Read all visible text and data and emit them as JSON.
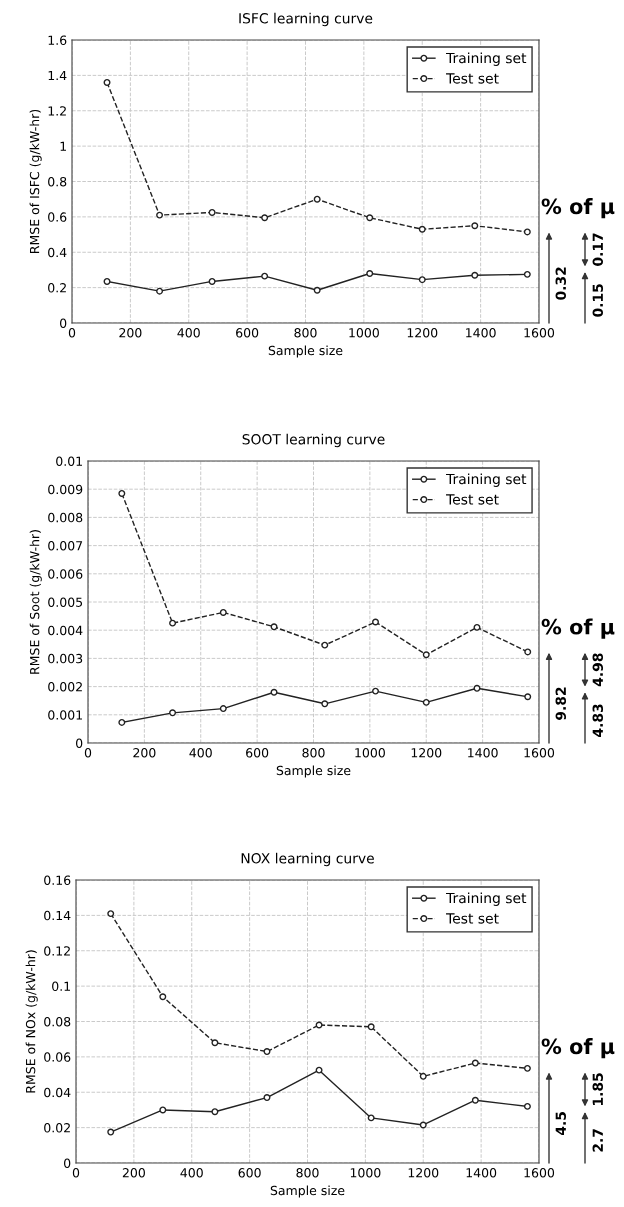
{
  "chart_data": [
    {
      "type": "line",
      "title": "ISFC learning curve",
      "xlabel": "Sample size",
      "ylabel": "RMSE of ISFC (g/kW-hr)",
      "x": [
        120,
        300,
        480,
        660,
        840,
        1020,
        1200,
        1380,
        1560
      ],
      "series": [
        {
          "name": "Training set",
          "color": "#222222",
          "line_style": "solid",
          "values": [
            0.235,
            0.18,
            0.235,
            0.265,
            0.185,
            0.28,
            0.245,
            0.27,
            0.275
          ]
        },
        {
          "name": "Test set",
          "color": "#222222",
          "line_style": "dashed",
          "values": [
            1.36,
            0.61,
            0.625,
            0.595,
            0.7,
            0.595,
            0.53,
            0.55,
            0.515
          ]
        }
      ],
      "xlim": [
        0,
        1600
      ],
      "xticks": [
        0,
        200,
        400,
        600,
        800,
        1000,
        1200,
        1400,
        1600
      ],
      "ylim": [
        0,
        1.6
      ],
      "yticks": [
        0,
        0.2,
        0.4,
        0.6,
        0.8,
        1,
        1.2,
        1.4,
        1.6
      ],
      "grid": true,
      "legend": "top right",
      "marker": "circle",
      "annotations": [
        "% of μ",
        "0.32",
        "0.17",
        "0.15"
      ]
    },
    {
      "type": "line",
      "title": "SOOT learning curve",
      "xlabel": "Sample size",
      "ylabel": "RMSE of Soot (g/kW-hr)",
      "x": [
        120,
        300,
        480,
        660,
        840,
        1020,
        1200,
        1380,
        1560
      ],
      "series": [
        {
          "name": "Training set",
          "color": "#222222",
          "line_style": "solid",
          "values": [
            0.00073,
            0.00107,
            0.00122,
            0.0018,
            0.00139,
            0.00184,
            0.00144,
            0.00194,
            0.00164
          ]
        },
        {
          "name": "Test set",
          "color": "#222222",
          "line_style": "dashed",
          "values": [
            0.00885,
            0.00425,
            0.00463,
            0.00412,
            0.00347,
            0.00429,
            0.00313,
            0.0041,
            0.00323
          ]
        }
      ],
      "xlim": [
        0,
        1600
      ],
      "xticks": [
        0,
        200,
        400,
        600,
        800,
        1000,
        1200,
        1400,
        1600
      ],
      "ylim": [
        0,
        0.01
      ],
      "yticks": [
        0,
        0.001,
        0.002,
        0.003,
        0.004,
        0.005,
        0.006,
        0.007,
        0.008,
        0.009,
        0.01
      ],
      "grid": true,
      "legend": "top right",
      "marker": "circle",
      "annotations": [
        "% of μ",
        "9.82",
        "4.98",
        "4.83"
      ]
    },
    {
      "type": "line",
      "title": "NOX learning curve",
      "xlabel": "Sample size",
      "ylabel": "RMSE of NOx (g/kW-hr)",
      "x": [
        120,
        300,
        480,
        660,
        840,
        1020,
        1200,
        1380,
        1560
      ],
      "series": [
        {
          "name": "Training set",
          "color": "#222222",
          "line_style": "solid",
          "values": [
            0.0175,
            0.03,
            0.029,
            0.037,
            0.0525,
            0.0255,
            0.0215,
            0.0355,
            0.032
          ]
        },
        {
          "name": "Test set",
          "color": "#222222",
          "line_style": "dashed",
          "values": [
            0.141,
            0.094,
            0.068,
            0.063,
            0.078,
            0.077,
            0.049,
            0.0565,
            0.0535
          ]
        }
      ],
      "xlim": [
        0,
        1600
      ],
      "xticks": [
        0,
        200,
        400,
        600,
        800,
        1000,
        1200,
        1400,
        1600
      ],
      "ylim": [
        0,
        0.16
      ],
      "yticks": [
        0,
        0.02,
        0.04,
        0.06,
        0.08,
        0.1,
        0.12,
        0.14,
        0.16
      ],
      "grid": true,
      "legend": "top right",
      "marker": "circle",
      "annotations": [
        "% of μ",
        "4.5",
        "1.85",
        "2.7"
      ]
    }
  ]
}
